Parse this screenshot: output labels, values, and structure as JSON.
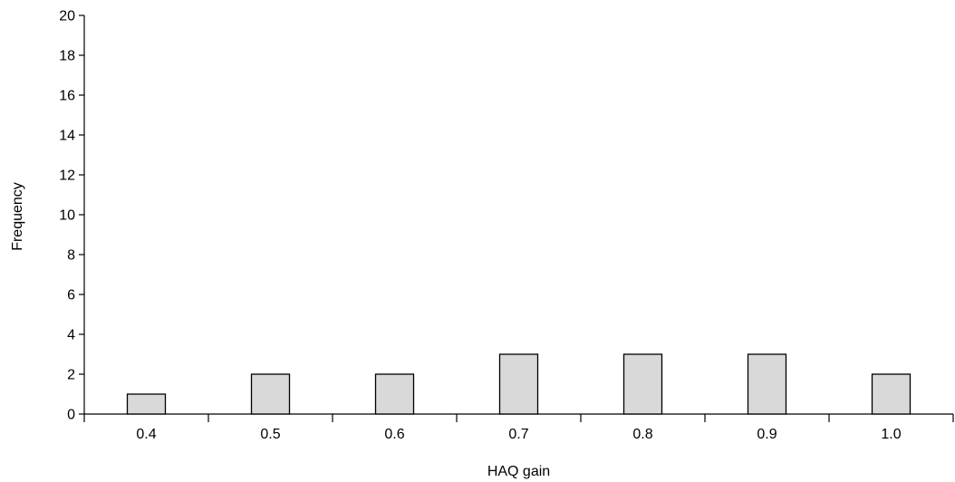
{
  "chart_data": {
    "type": "bar",
    "categories": [
      "0.4",
      "0.5",
      "0.6",
      "0.7",
      "0.8",
      "0.9",
      "1.0"
    ],
    "values": [
      1,
      2,
      2,
      3,
      3,
      3,
      2
    ],
    "title": "",
    "xlabel": "HAQ gain",
    "ylabel": "Frequency",
    "ylim": [
      0,
      20
    ],
    "yticks": [
      "0",
      "2",
      "4",
      "6",
      "8",
      "10",
      "12",
      "14",
      "16",
      "18",
      "20"
    ],
    "grid": false,
    "bar_color": "#d9d9d9",
    "edge_color": "#000000"
  }
}
